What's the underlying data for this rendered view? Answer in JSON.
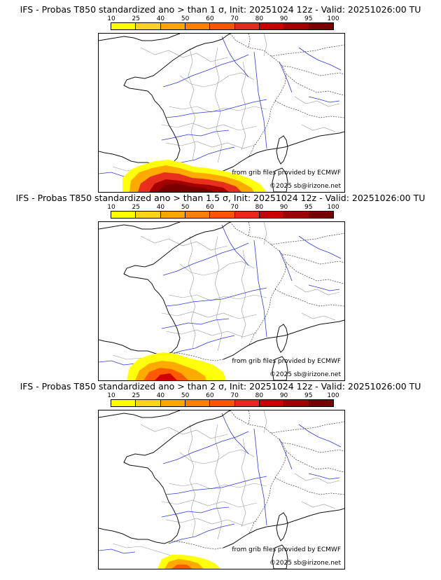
{
  "palette": [
    "#ffff00",
    "#ffd21e",
    "#ffa500",
    "#ff7f00",
    "#ff5500",
    "#e6281e",
    "#c80000",
    "#a00000",
    "#780000"
  ],
  "colorbar_ticks": [
    "10",
    "25",
    "40",
    "50",
    "60",
    "70",
    "80",
    "90",
    "95",
    "100"
  ],
  "credit_grib": "from grib files provided by ECMWF",
  "credit_site": "©2025 sb@irizone.net",
  "panels": [
    {
      "title": "IFS - Probas T850  standardized ano > than 1 σ, Init: 20251024 12z - Valid: 20251026:00 TU",
      "intensity": 1.0
    },
    {
      "title": "IFS - Probas T850  standardized ano > than 1.5 σ, Init: 20251024 12z - Valid: 20251026:00 TU",
      "intensity": 0.62
    },
    {
      "title": "IFS - Probas T850  standardized ano > than 2 σ, Init: 20251024 12z - Valid: 20251026:00 TU",
      "intensity": 0.35
    }
  ]
}
